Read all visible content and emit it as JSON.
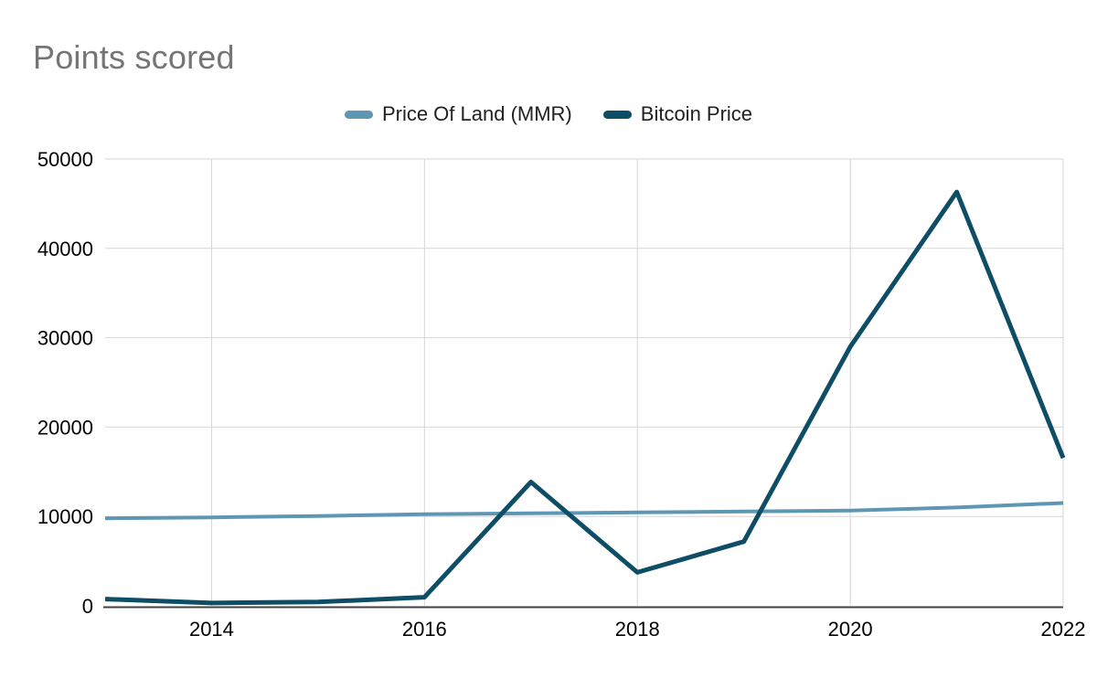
{
  "page": {
    "background_color": "#ffffff"
  },
  "chart": {
    "title": "Points scored",
    "title_color": "#757575"
  },
  "chart_data": {
    "type": "line",
    "title": "Points scored",
    "x": [
      2013,
      2014,
      2015,
      2016,
      2017,
      2018,
      2019,
      2020,
      2021,
      2022
    ],
    "x_ticks": [
      2014,
      2016,
      2018,
      2020,
      2022
    ],
    "y_ticks": [
      0,
      10000,
      20000,
      30000,
      40000,
      50000
    ],
    "ylim": [
      0,
      50000
    ],
    "xlabel": "",
    "ylabel": "",
    "grid": true,
    "legend_position": "top-center",
    "grid_color": "#d6d6d6",
    "axis_line_color": "#424242",
    "tick_label_color": "#000000",
    "series": [
      {
        "name": "Price Of Land (MMR)",
        "slug": "price-of-land-mmr",
        "color": "#5f96b4",
        "stroke_width": 4,
        "values": [
          9800,
          9900,
          10050,
          10250,
          10350,
          10450,
          10550,
          10650,
          11000,
          11500
        ]
      },
      {
        "name": "Bitcoin Price",
        "slug": "bitcoin-price",
        "color": "#0e4d66",
        "stroke_width": 5,
        "values": [
          754,
          320,
          430,
          963,
          13850,
          3742,
          7193,
          28990,
          46306,
          16547
        ]
      }
    ]
  }
}
